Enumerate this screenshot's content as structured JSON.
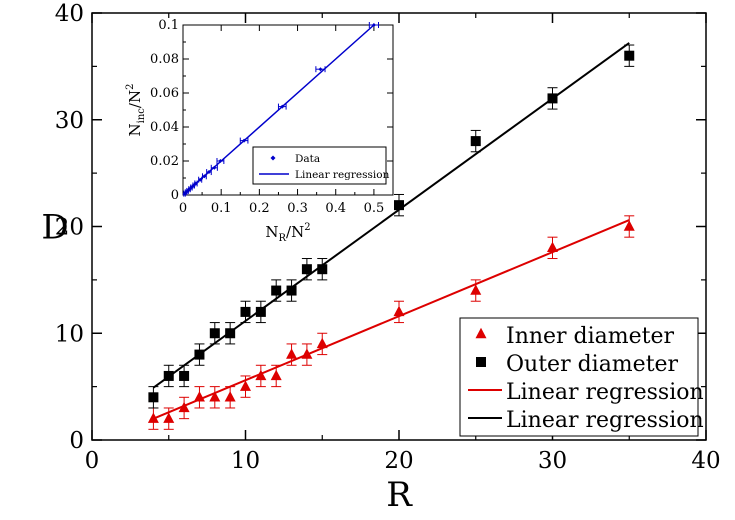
{
  "chart_data": [
    {
      "type": "scatter",
      "role": "main",
      "title": "",
      "xlabel": "R",
      "ylabel": "D",
      "xlim": [
        0,
        40
      ],
      "ylim": [
        0,
        40
      ],
      "xticks": [
        0,
        10,
        20,
        30,
        40
      ],
      "yticks": [
        0,
        10,
        20,
        30,
        40
      ],
      "grid": false,
      "legend_position": "bottom-right",
      "series": [
        {
          "name": "Inner diameter",
          "marker": "triangle",
          "color": "#dd0000",
          "x": [
            4,
            5,
            6,
            7,
            8,
            9,
            10,
            11,
            12,
            13,
            14,
            15,
            20,
            25,
            30,
            35
          ],
          "y": [
            2,
            2,
            3,
            4,
            4,
            4,
            5,
            6,
            6,
            8,
            8,
            9,
            12,
            14,
            18,
            20
          ],
          "err": [
            1,
            1,
            1,
            1,
            1,
            1,
            1,
            1,
            1,
            1,
            1,
            1,
            1,
            1,
            1,
            1
          ]
        },
        {
          "name": "Outer diameter",
          "marker": "square",
          "color": "#000000",
          "x": [
            4,
            5,
            6,
            7,
            8,
            9,
            10,
            11,
            12,
            13,
            14,
            15,
            20,
            25,
            30,
            35
          ],
          "y": [
            4,
            6,
            6,
            8,
            10,
            10,
            12,
            12,
            14,
            14,
            16,
            16,
            22,
            28,
            32,
            36
          ],
          "err": [
            1,
            1,
            1,
            1,
            1,
            1,
            1,
            1,
            1,
            1,
            1,
            1,
            1,
            1,
            1,
            1
          ]
        },
        {
          "name": "Linear regression",
          "type": "line",
          "color": "#dd0000",
          "x": [
            4,
            35
          ],
          "y": [
            2.0,
            20.6
          ]
        },
        {
          "name": "Linear regression",
          "type": "line",
          "color": "#000000",
          "x": [
            4,
            35
          ],
          "y": [
            4.9,
            37.2
          ]
        }
      ]
    },
    {
      "type": "scatter",
      "role": "inset",
      "title": "",
      "xlabel_main": "N",
      "xlabel_sub": "R",
      "xlabel_rest": "/N",
      "xlabel_sup": "2",
      "ylabel_main": "N",
      "ylabel_sub": "inc",
      "ylabel_rest": "/N",
      "ylabel_sup": "2",
      "xlim": [
        0,
        0.55
      ],
      "ylim": [
        0,
        0.1
      ],
      "xticks": [
        "0",
        "0.1",
        "0.2",
        "0.3",
        "0.4",
        "0.5"
      ],
      "xtick_values": [
        0,
        0.1,
        0.2,
        0.3,
        0.4,
        0.5
      ],
      "yticks": [
        "0",
        "0.02",
        "0.04",
        "0.06",
        "0.08",
        "0.1"
      ],
      "ytick_values": [
        0,
        0.02,
        0.04,
        0.06,
        0.08,
        0.1
      ],
      "legend_position": "bottom-right",
      "series": [
        {
          "name": "Data",
          "marker": "diamond",
          "color": "#0000cc",
          "x": [
            0.004,
            0.008,
            0.012,
            0.017,
            0.022,
            0.028,
            0.034,
            0.045,
            0.056,
            0.068,
            0.082,
            0.098,
            0.16,
            0.26,
            0.36,
            0.5
          ],
          "y": [
            0.0008,
            0.0016,
            0.0024,
            0.0034,
            0.0044,
            0.0056,
            0.0068,
            0.009,
            0.011,
            0.0135,
            0.016,
            0.02,
            0.032,
            0.052,
            0.074,
            0.1
          ],
          "xerr": [
            0.002,
            0.002,
            0.002,
            0.002,
            0.002,
            0.002,
            0.003,
            0.004,
            0.005,
            0.006,
            0.008,
            0.009,
            0.01,
            0.01,
            0.012,
            0.012
          ]
        },
        {
          "name": "Linear regression",
          "type": "line",
          "color": "#0000cc",
          "x": [
            0,
            0.5
          ],
          "y": [
            0,
            0.1
          ]
        }
      ]
    }
  ]
}
